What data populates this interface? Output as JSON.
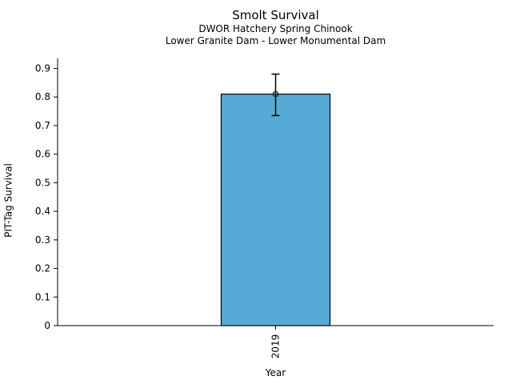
{
  "chart_data": {
    "type": "bar",
    "title": "Smolt Survival",
    "subtitle": [
      "DWOR Hatchery Spring Chinook",
      "Lower Granite Dam - Lower Monumental Dam"
    ],
    "xlabel": "Year",
    "ylabel": "PIT-Tag Survival",
    "categories": [
      "2019"
    ],
    "values": [
      0.81
    ],
    "error_bars": [
      {
        "low": 0.735,
        "high": 0.88
      }
    ],
    "marker": "open-circle",
    "ylim": [
      0,
      0.935
    ],
    "yticks": [
      0,
      0.1,
      0.2,
      0.3,
      0.4,
      0.5,
      0.6,
      0.7,
      0.8,
      0.9
    ],
    "ytick_labels": [
      "0",
      "0.1",
      "0.2",
      "0.3",
      "0.4",
      "0.5",
      "0.6",
      "0.7",
      "0.8",
      "0.9"
    ],
    "xtick_rotation": 90,
    "grid": false,
    "legend": "none",
    "bar_color": "#58aad6",
    "bar_edge_color": "#000000",
    "error_color": "#000000",
    "marker_edge_color": "#222222",
    "text_color": "#000000",
    "background_color": "#ffffff"
  }
}
